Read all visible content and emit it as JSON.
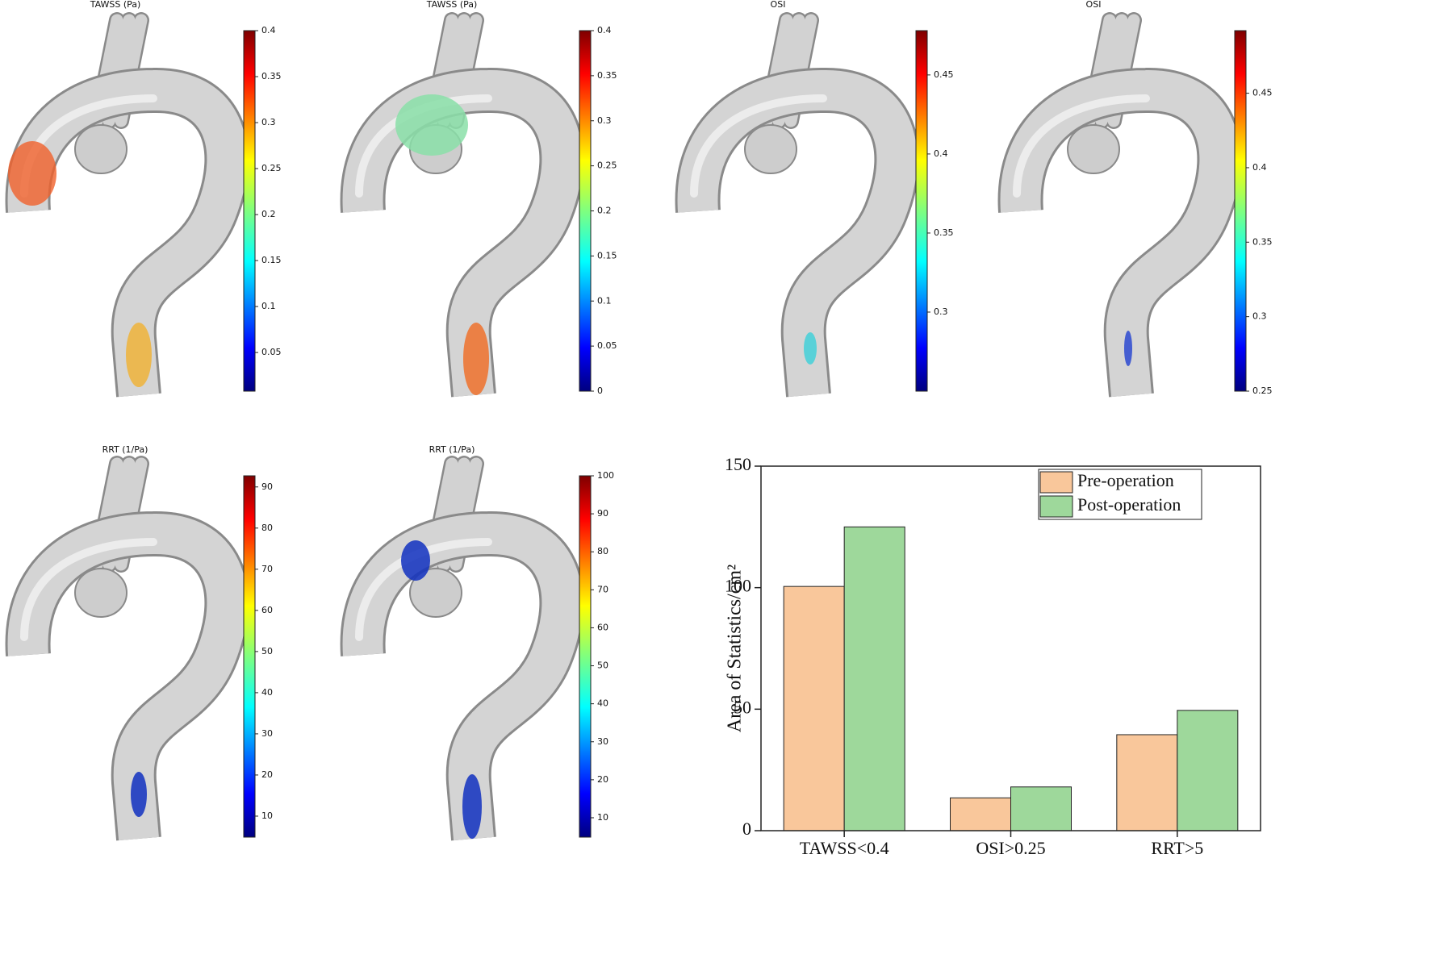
{
  "chart_data": [
    {
      "type": "colorbar",
      "title": "TAWSS (Pa)",
      "ylim": [
        0.008,
        0.4
      ],
      "yticks": [
        0.05,
        0.1,
        0.15,
        0.2,
        0.25,
        0.3,
        0.35,
        0.4
      ]
    },
    {
      "type": "colorbar",
      "title": "TAWSS (Pa)",
      "ylim": [
        0,
        0.4
      ],
      "yticks": [
        0,
        0.05,
        0.1,
        0.15,
        0.2,
        0.25,
        0.3,
        0.35,
        0.4
      ]
    },
    {
      "type": "colorbar",
      "title": "OSI",
      "ylim": [
        0.25,
        0.478
      ],
      "yticks": [
        0.3,
        0.35,
        0.4,
        0.45
      ]
    },
    {
      "type": "colorbar",
      "title": "OSI",
      "ylim": [
        0.25,
        0.492
      ],
      "yticks": [
        0.25,
        0.3,
        0.35,
        0.4,
        0.45
      ]
    },
    {
      "type": "colorbar",
      "title": "RRT (1/Pa)",
      "ylim": [
        4.9,
        92.7
      ],
      "yticks": [
        10,
        20,
        30,
        40,
        50,
        60,
        70,
        80,
        90
      ]
    },
    {
      "type": "colorbar",
      "title": "RRT (1/Pa)",
      "ylim": [
        4.9,
        100
      ],
      "yticks": [
        10,
        20,
        30,
        40,
        50,
        60,
        70,
        80,
        90,
        100
      ]
    },
    {
      "type": "bar",
      "y_label": "Area of Statistics/cm²",
      "categories": [
        "TAWSS<0.4",
        "OSI>0.25",
        "RRT>5"
      ],
      "series": [
        {
          "name": "Pre-operation",
          "color": "#f9c79b",
          "values": [
            100.5,
            13.5,
            39.5
          ]
        },
        {
          "name": "Post-operation",
          "color": "#9ed89b",
          "values": [
            125,
            18,
            49.5
          ]
        }
      ],
      "ylim": [
        0,
        150
      ],
      "yticks": [
        0,
        50,
        100,
        150
      ],
      "legend": "upper right"
    }
  ]
}
